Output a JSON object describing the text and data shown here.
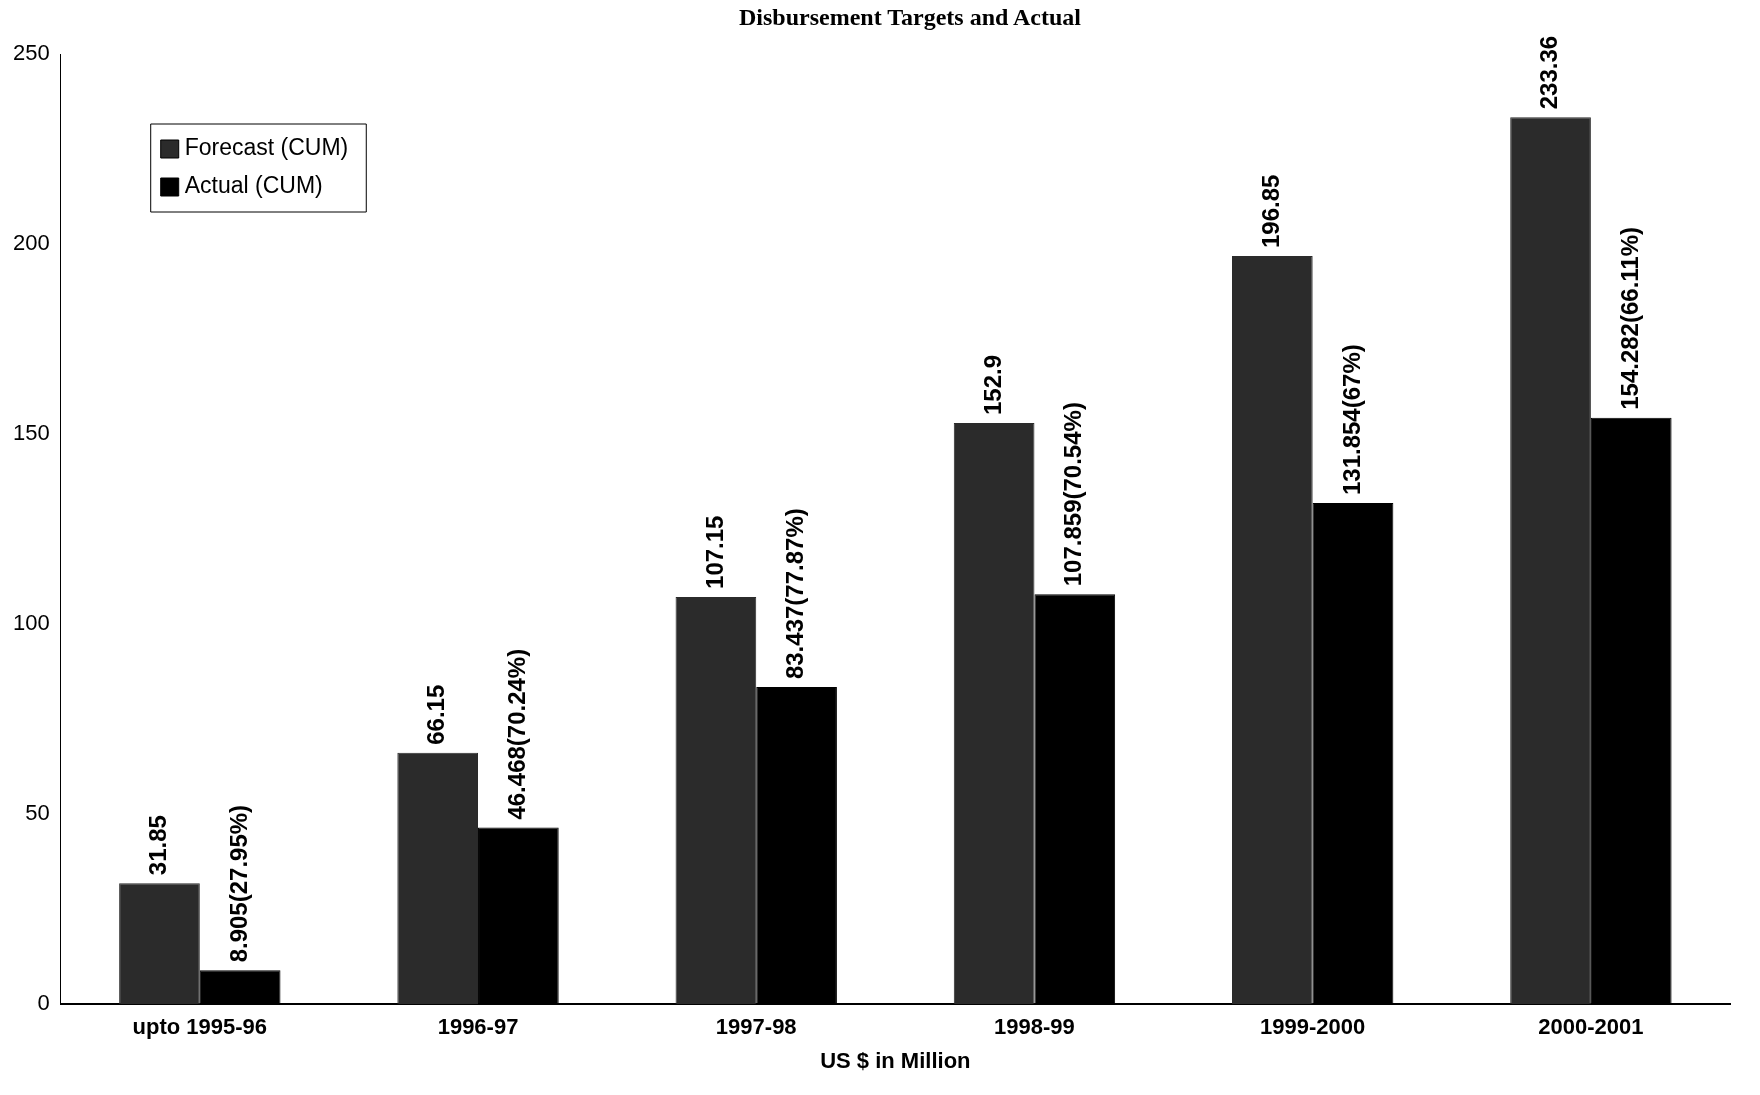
{
  "chart_data": {
    "type": "bar",
    "title": "Disbursement Targets and Actual",
    "xlabel": "US $ in Million",
    "categories": [
      "upto 1995-96",
      "1996-97",
      "1997-98",
      "1998-99",
      "1999-2000",
      "2000-2001"
    ],
    "series": [
      {
        "name": "Forecast (CUM)",
        "color": "#2b2b2b",
        "values": [
          31.85,
          66.15,
          107.15,
          152.9,
          196.85,
          233.36
        ],
        "value_labels": [
          "31.85",
          "66.15",
          "107.15",
          "152.9",
          "196.85",
          "233.36"
        ]
      },
      {
        "name": "Actual (CUM)",
        "color": "#000000",
        "values": [
          8.905,
          46.468,
          83.437,
          107.859,
          131.854,
          154.282
        ],
        "value_labels": [
          "8.905(27.95%)",
          "46.468(70.24%)",
          "83.437(77.87%)",
          "107.859(70.54%)",
          "131.854(67%)",
          "154.282(66.11%)"
        ]
      }
    ],
    "ylim": [
      0,
      250
    ],
    "yticks": [
      0,
      50,
      100,
      150,
      200,
      250
    ],
    "grid": false,
    "legend": "top left"
  }
}
